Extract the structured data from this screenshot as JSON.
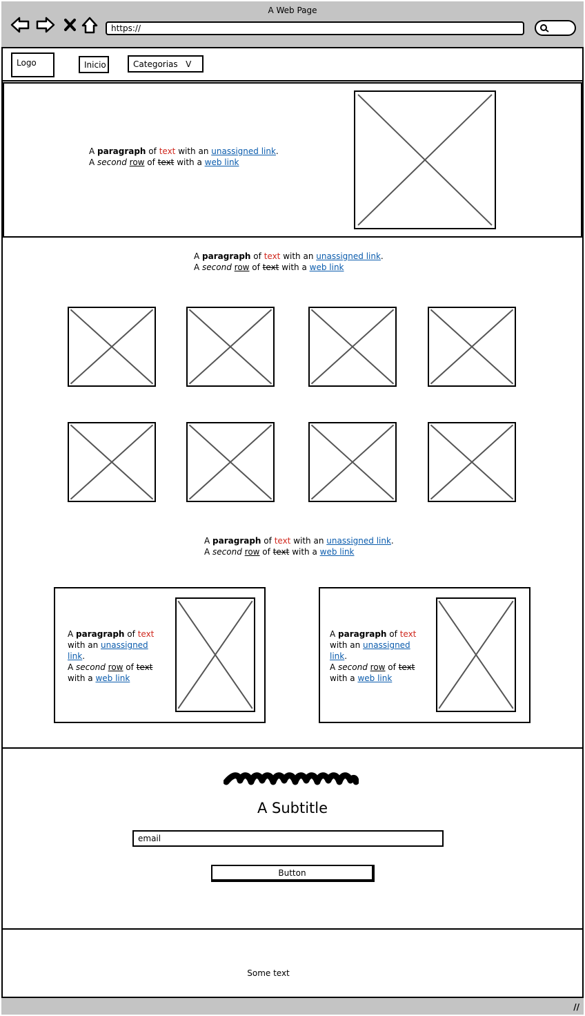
{
  "window": {
    "title": "A Web Page"
  },
  "browser": {
    "url": "https://"
  },
  "nav": {
    "logo": "Logo",
    "items": [
      "Inicio",
      "Categorias   V"
    ]
  },
  "paragraph": {
    "t1": "A ",
    "bold": "paragraph",
    "t2": " of ",
    "red": "text",
    "t3": " with an ",
    "link1": "unassigned link",
    "t4": ".",
    "t5": "A ",
    "italic": "second",
    "t6": " ",
    "underlined": "row",
    "t7": " of ",
    "strike": "text",
    "t8": " with a ",
    "link2": "web link"
  },
  "signup": {
    "subtitle": "A Subtitle",
    "email_value": "email",
    "button_label": "Button"
  },
  "footer": {
    "text": "Some text"
  },
  "colors": {
    "chrome": "#c4c4c4",
    "red_text": "#d0281e",
    "link": "#0b5cad"
  }
}
